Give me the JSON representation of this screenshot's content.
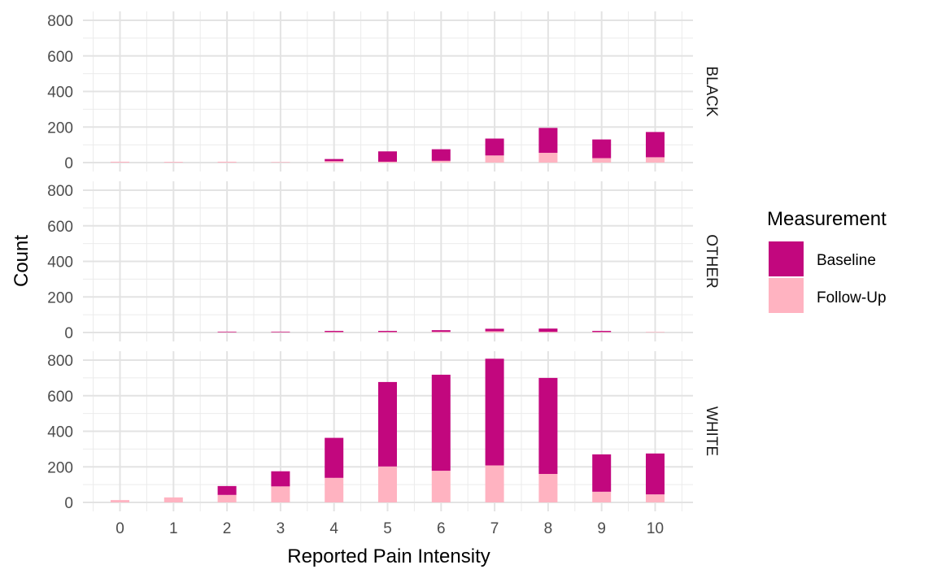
{
  "chart_data": {
    "type": "bar",
    "stacked": true,
    "xlabel": "Reported Pain Intensity",
    "ylabel": "Count",
    "categories": [
      "0",
      "1",
      "2",
      "3",
      "4",
      "5",
      "6",
      "7",
      "8",
      "9",
      "10"
    ],
    "ylim": [
      0,
      800
    ],
    "yticks": [
      "0",
      "200",
      "400",
      "600",
      "800"
    ],
    "grid": true,
    "legend": {
      "title": "Measurement",
      "placement": "right",
      "entries": [
        "Baseline",
        "Follow-Up"
      ]
    },
    "colors": {
      "Baseline": "#c2077e",
      "Follow-Up": "#ffb3c1"
    },
    "facets": [
      {
        "label": "BLACK",
        "series": [
          {
            "name": "Baseline",
            "values": [
              0,
              0,
              0,
              0,
              12,
              58,
              65,
              95,
              140,
              105,
              142
            ]
          },
          {
            "name": "Follow-Up",
            "values": [
              5,
              4,
              5,
              3,
              8,
              5,
              10,
              40,
              55,
              25,
              30
            ]
          }
        ]
      },
      {
        "label": "OTHER",
        "series": [
          {
            "name": "Baseline",
            "values": [
              0,
              0,
              3,
              3,
              6,
              6,
              9,
              14,
              18,
              6,
              0
            ]
          },
          {
            "name": "Follow-Up",
            "values": [
              0,
              0,
              2,
              2,
              3,
              3,
              4,
              7,
              4,
              3,
              3
            ]
          }
        ]
      },
      {
        "label": "WHITE",
        "series": [
          {
            "name": "Baseline",
            "values": [
              0,
              0,
              50,
              85,
              225,
              475,
              540,
              600,
              540,
              210,
              230
            ]
          },
          {
            "name": "Follow-Up",
            "values": [
              13,
              28,
              42,
              90,
              138,
              202,
              178,
              208,
              160,
              60,
              45
            ]
          }
        ]
      }
    ]
  }
}
